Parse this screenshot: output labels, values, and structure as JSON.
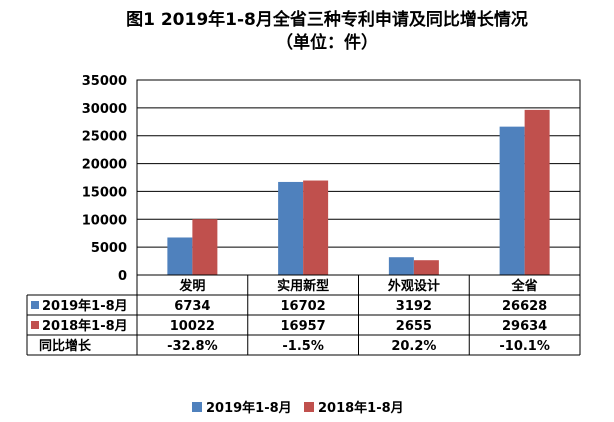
{
  "title": "图1  2019年1-8月全省三种专利申请及同比增长情况",
  "subtitle": "（单位：件）",
  "colors": {
    "s2019": "#4F81BD",
    "s2018": "#C0504D"
  },
  "chart_data": {
    "type": "bar",
    "categories": [
      "发明",
      "实用新型",
      "外观设计",
      "全省"
    ],
    "series": [
      {
        "name": "2019年1-8月",
        "values": [
          6734,
          16702,
          3192,
          26628
        ]
      },
      {
        "name": "2018年1-8月",
        "values": [
          10022,
          16957,
          2655,
          29634
        ]
      }
    ],
    "yticks": [
      0,
      5000,
      10000,
      15000,
      20000,
      25000,
      30000,
      35000
    ],
    "ylim": [
      0,
      35000
    ],
    "grid": true,
    "legend": "bottom",
    "table": {
      "row_labels": [
        "2019年1-8月",
        "2018年1-8月",
        "同比增长"
      ],
      "rows": [
        [
          "6734",
          "16702",
          "3192",
          "26628"
        ],
        [
          "10022",
          "16957",
          "2655",
          "29634"
        ],
        [
          "-32.8%",
          "-1.5%",
          "20.2%",
          "-10.1%"
        ]
      ]
    }
  }
}
